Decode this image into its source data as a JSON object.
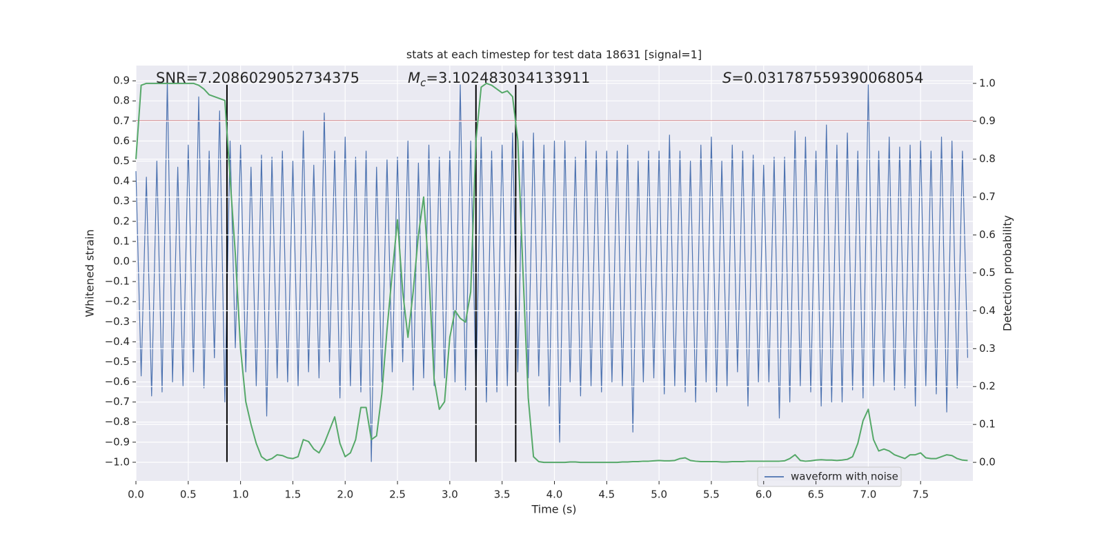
{
  "chart_data": {
    "type": "line",
    "title": "stats at each timestep for test data 18631 [signal=1]",
    "x_label": "Time (s)",
    "y_label": "Whitened strain",
    "y2_label": "Detection probability",
    "xlim": [
      0,
      8.0
    ],
    "ylim": [
      -1.093,
      0.976
    ],
    "y2lim": [
      -0.049,
      1.047
    ],
    "xticks": [
      {
        "value": 0,
        "label": "0.0"
      },
      0.5,
      {
        "value": 1,
        "label": "1.0"
      },
      1.5,
      {
        "value": 2,
        "label": "2.0"
      },
      2.5,
      {
        "value": 3,
        "label": "3.0"
      },
      3.5,
      {
        "value": 4,
        "label": "4.0"
      },
      4.5,
      {
        "value": 5,
        "label": "5.0"
      },
      5.5,
      {
        "value": 6,
        "label": "6.0"
      },
      6.5,
      {
        "value": 7,
        "label": "7.0"
      },
      7.5
    ],
    "yticks": [
      {
        "value": -1.0,
        "label": "−1.0"
      },
      {
        "value": -0.9,
        "label": "−0.9"
      },
      {
        "value": -0.8,
        "label": "−0.8"
      },
      {
        "value": -0.7,
        "label": "−0.7"
      },
      {
        "value": -0.6,
        "label": "−0.6"
      },
      {
        "value": -0.5,
        "label": "−0.5"
      },
      {
        "value": -0.4,
        "label": "−0.4"
      },
      {
        "value": -0.3,
        "label": "−0.3"
      },
      {
        "value": -0.2,
        "label": "−0.2"
      },
      {
        "value": -0.1,
        "label": "−0.1"
      },
      {
        "value": 0,
        "label": "0.0"
      },
      0.1,
      0.2,
      0.3,
      0.4,
      0.5,
      0.6,
      0.7,
      0.8,
      0.9
    ],
    "y2ticks": [
      {
        "value": 0,
        "label": "0.0"
      },
      0.1,
      0.2,
      0.3,
      0.4,
      0.5,
      0.6,
      0.7,
      0.8,
      0.9,
      {
        "value": 1,
        "label": "1.0"
      }
    ],
    "grid": true,
    "legend": "lower right",
    "x": [
      0,
      0.05,
      0.1,
      0.15,
      0.2,
      0.25,
      0.3,
      0.35,
      0.4,
      0.45,
      0.5,
      0.55,
      0.6,
      0.65,
      0.7,
      0.75,
      0.8,
      0.85,
      0.9,
      0.95,
      1.0,
      1.05,
      1.1,
      1.15,
      1.2,
      1.25,
      1.3,
      1.35,
      1.4,
      1.45,
      1.5,
      1.55,
      1.6,
      1.65,
      1.7,
      1.75,
      1.8,
      1.85,
      1.9,
      1.95,
      2.0,
      2.05,
      2.1,
      2.15,
      2.2,
      2.25,
      2.3,
      2.35,
      2.4,
      2.45,
      2.5,
      2.55,
      2.6,
      2.65,
      2.7,
      2.75,
      2.8,
      2.85,
      2.9,
      2.95,
      3.0,
      3.05,
      3.1,
      3.15,
      3.2,
      3.25,
      3.3,
      3.35,
      3.4,
      3.45,
      3.5,
      3.55,
      3.6,
      3.65,
      3.7,
      3.75,
      3.8,
      3.85,
      3.9,
      3.95,
      4.0,
      4.05,
      4.1,
      4.15,
      4.2,
      4.25,
      4.3,
      4.35,
      4.4,
      4.45,
      4.5,
      4.55,
      4.6,
      4.65,
      4.7,
      4.75,
      4.8,
      4.85,
      4.9,
      4.95,
      5.0,
      5.05,
      5.1,
      5.15,
      5.2,
      5.25,
      5.3,
      5.35,
      5.4,
      5.45,
      5.5,
      5.55,
      5.6,
      5.65,
      5.7,
      5.75,
      5.8,
      5.85,
      5.9,
      5.95,
      6.0,
      6.05,
      6.1,
      6.15,
      6.2,
      6.25,
      6.3,
      6.35,
      6.4,
      6.45,
      6.5,
      6.55,
      6.6,
      6.65,
      6.7,
      6.75,
      6.8,
      6.85,
      6.9,
      6.95,
      7.0,
      7.05,
      7.1,
      7.15,
      7.2,
      7.25,
      7.3,
      7.35,
      7.4,
      7.45,
      7.5,
      7.55,
      7.6,
      7.65,
      7.7,
      7.75,
      7.8,
      7.85,
      7.9,
      7.95
    ],
    "series": [
      {
        "name": "waveform with noise",
        "color": "#4c72b0",
        "axis": "y",
        "values": [
          0.45,
          -0.57,
          0.42,
          -0.67,
          0.5,
          -0.65,
          0.9,
          -0.6,
          0.47,
          -0.62,
          0.58,
          -0.55,
          0.82,
          -0.63,
          0.55,
          -0.48,
          0.75,
          -0.7,
          0.6,
          -0.43,
          0.58,
          -0.55,
          0.47,
          -0.62,
          0.53,
          -0.77,
          0.52,
          -0.58,
          0.55,
          -0.6,
          0.5,
          -0.62,
          0.65,
          -0.55,
          0.48,
          -0.58,
          0.74,
          -0.5,
          0.55,
          -0.68,
          0.62,
          -0.62,
          0.52,
          -0.65,
          0.55,
          -1.0,
          0.47,
          -0.6,
          0.51,
          -0.55,
          0.52,
          -0.5,
          0.6,
          -0.64,
          0.49,
          -0.58,
          0.58,
          -0.62,
          0.52,
          -0.58,
          0.55,
          -0.6,
          0.88,
          -0.64,
          0.6,
          -0.62,
          0.62,
          -0.7,
          0.55,
          -0.65,
          0.58,
          -0.62,
          0.64,
          -0.55,
          0.6,
          -0.58,
          0.64,
          -0.57,
          0.58,
          -0.72,
          0.6,
          -0.9,
          0.6,
          -0.6,
          0.52,
          -0.67,
          0.6,
          -0.62,
          0.55,
          -0.65,
          0.55,
          -0.6,
          0.55,
          -0.62,
          0.58,
          -0.85,
          0.5,
          -0.6,
          0.55,
          -0.58,
          0.55,
          -0.66,
          0.63,
          -0.62,
          0.55,
          -0.65,
          0.5,
          -0.7,
          0.58,
          -0.6,
          0.62,
          -0.65,
          0.5,
          -0.62,
          0.58,
          -0.55,
          0.55,
          -0.72,
          0.53,
          -0.6,
          0.48,
          -0.6,
          0.52,
          -0.78,
          0.52,
          -0.7,
          0.65,
          -0.62,
          0.62,
          -0.65,
          0.55,
          -0.72,
          0.68,
          -0.7,
          0.58,
          -0.7,
          0.64,
          -0.64,
          0.55,
          -0.68,
          0.88,
          -0.62,
          0.55,
          -0.6,
          0.62,
          -0.64,
          0.57,
          -0.63,
          0.58,
          -0.72,
          0.6,
          -0.62,
          0.55,
          -0.66,
          0.62,
          -0.75,
          0.6,
          -0.63,
          0.55,
          -0.48
        ]
      },
      {
        "color": "#55a868",
        "axis": "y2",
        "values": [
          0.8,
          0.995,
          1.0,
          1.0,
          1.0,
          1.0,
          1.0,
          1.0,
          1.0,
          1.0,
          1.0,
          1.0,
          0.995,
          0.985,
          0.97,
          0.965,
          0.96,
          0.955,
          0.75,
          0.55,
          0.3,
          0.16,
          0.1,
          0.05,
          0.015,
          0.005,
          0.01,
          0.02,
          0.018,
          0.012,
          0.01,
          0.015,
          0.06,
          0.055,
          0.035,
          0.025,
          0.05,
          0.085,
          0.12,
          0.05,
          0.015,
          0.025,
          0.06,
          0.145,
          0.145,
          0.06,
          0.07,
          0.18,
          0.35,
          0.5,
          0.64,
          0.45,
          0.33,
          0.45,
          0.6,
          0.7,
          0.5,
          0.22,
          0.14,
          0.16,
          0.33,
          0.4,
          0.38,
          0.37,
          0.45,
          0.85,
          0.99,
          1.0,
          0.995,
          0.985,
          0.975,
          0.98,
          0.965,
          0.85,
          0.5,
          0.17,
          0.015,
          0.002,
          0.0,
          0.0,
          0.0,
          0.0,
          0.0,
          0.001,
          0.001,
          0.0,
          0.0,
          0.0,
          0.0,
          0.0,
          0.0,
          0.0,
          0.0,
          0.001,
          0.001,
          0.002,
          0.002,
          0.003,
          0.003,
          0.004,
          0.005,
          0.004,
          0.004,
          0.005,
          0.01,
          0.012,
          0.005,
          0.003,
          0.002,
          0.002,
          0.002,
          0.002,
          0.001,
          0.001,
          0.002,
          0.002,
          0.002,
          0.003,
          0.003,
          0.003,
          0.003,
          0.003,
          0.003,
          0.003,
          0.004,
          0.01,
          0.02,
          0.005,
          0.003,
          0.004,
          0.006,
          0.007,
          0.006,
          0.006,
          0.005,
          0.006,
          0.008,
          0.015,
          0.05,
          0.11,
          0.14,
          0.06,
          0.03,
          0.035,
          0.03,
          0.02,
          0.015,
          0.01,
          0.02,
          0.02,
          0.025,
          0.012,
          0.01,
          0.01,
          0.015,
          0.02,
          0.018,
          0.01,
          0.006,
          0.005
        ]
      }
    ],
    "hline": {
      "y": 0.7,
      "color": "#c44e52"
    },
    "vlines": {
      "x": [
        0.87,
        3.25,
        3.63
      ],
      "ymin": -1.0,
      "ymax": 0.88,
      "color": "#000000"
    },
    "annotations": [
      {
        "text": "SNR=7.2086029052734375"
      },
      {
        "symbol": "M",
        "subscript": "c",
        "text": "=3.102483034133911"
      },
      {
        "symbol": "S",
        "text": "=0.031787559390068054"
      }
    ]
  }
}
